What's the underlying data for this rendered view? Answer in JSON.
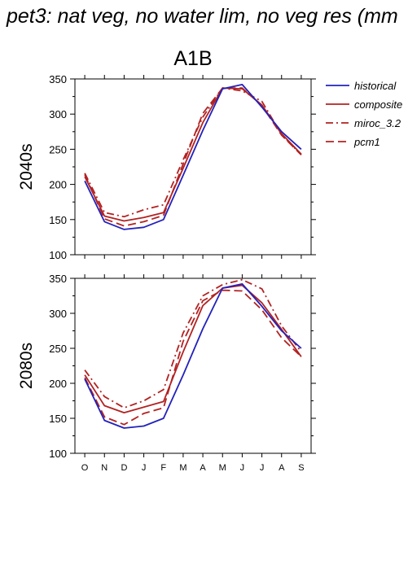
{
  "title": "pet3: nat veg, no water lim, no veg res (mm",
  "chart_data": {
    "type": "line",
    "scenario": "A1B",
    "categories": [
      "O",
      "N",
      "D",
      "J",
      "F",
      "M",
      "A",
      "M",
      "J",
      "J",
      "A",
      "S"
    ],
    "ylim": [
      100,
      350
    ],
    "yticks": [
      100,
      150,
      200,
      250,
      300,
      350
    ],
    "legend_position": "right",
    "legend": [
      {
        "name": "historical",
        "color": "#2222bb",
        "dash": ""
      },
      {
        "name": "composite",
        "color": "#b22222",
        "dash": ""
      },
      {
        "name": "miroc_3.2",
        "color": "#b22222",
        "dash": "9 4 2 4"
      },
      {
        "name": "pcm1",
        "color": "#b22222",
        "dash": "10 5"
      }
    ],
    "panels": [
      {
        "label": "2040s",
        "series": [
          {
            "name": "historical",
            "values": [
              205,
              147,
              136,
              139,
              150,
              213,
              277,
              336,
              342,
              310,
              275,
              250
            ]
          },
          {
            "name": "composite",
            "values": [
              211,
              155,
              148,
              153,
              160,
              223,
              288,
              337,
              336,
              313,
              272,
              243
            ]
          },
          {
            "name": "miroc_3.2",
            "values": [
              216,
              160,
              154,
              164,
              171,
              235,
              296,
              337,
              333,
              318,
              271,
              242
            ]
          },
          {
            "name": "pcm1",
            "values": [
              214,
              151,
              141,
              147,
              156,
              229,
              301,
              337,
              337,
              312,
              270,
              242
            ]
          }
        ]
      },
      {
        "label": "2080s",
        "series": [
          {
            "name": "historical",
            "values": [
              206,
              147,
              136,
              139,
              150,
              212,
              278,
              336,
              342,
              310,
              275,
              250
            ]
          },
          {
            "name": "composite",
            "values": [
              212,
              168,
              158,
              166,
              174,
              245,
              311,
              336,
              340,
              315,
              277,
              238
            ]
          },
          {
            "name": "miroc_3.2",
            "values": [
              219,
              181,
              165,
              175,
              191,
              272,
              325,
              341,
              348,
              335,
              282,
              245
            ]
          },
          {
            "name": "pcm1",
            "values": [
              208,
              152,
              141,
              157,
              165,
              260,
              318,
              333,
              332,
              305,
              265,
              238
            ]
          }
        ]
      }
    ]
  }
}
